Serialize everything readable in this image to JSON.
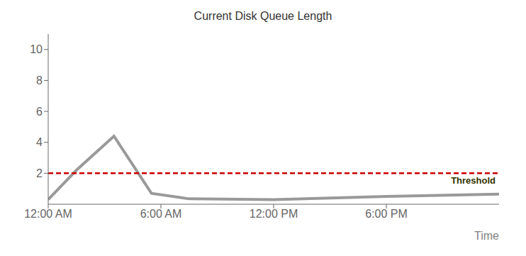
{
  "chart_data": {
    "type": "line",
    "title": "Current Disk Queue Length",
    "x_label": "Time",
    "x": [
      0,
      1.5,
      3.5,
      5.5,
      7.5,
      12,
      18,
      24
    ],
    "values": [
      0.3,
      2.2,
      4.4,
      0.7,
      0.35,
      0.3,
      0.5,
      0.65
    ],
    "color": "#999999",
    "xlim": [
      0,
      24
    ],
    "xticks": [
      {
        "value": 0,
        "label": "12:00 AM"
      },
      {
        "value": 6,
        "label": "6:00 AM"
      },
      {
        "value": 12,
        "label": "12:00 PM"
      },
      {
        "value": 18,
        "label": "6:00 PM"
      }
    ],
    "ylim": [
      0,
      11
    ],
    "yticks": [
      2,
      4,
      6,
      8,
      10
    ],
    "grid": false,
    "threshold": {
      "value": 2.0,
      "label": "Threshold",
      "color": "#cc0000",
      "label_color": "#333300",
      "line_style": "dashed"
    }
  }
}
